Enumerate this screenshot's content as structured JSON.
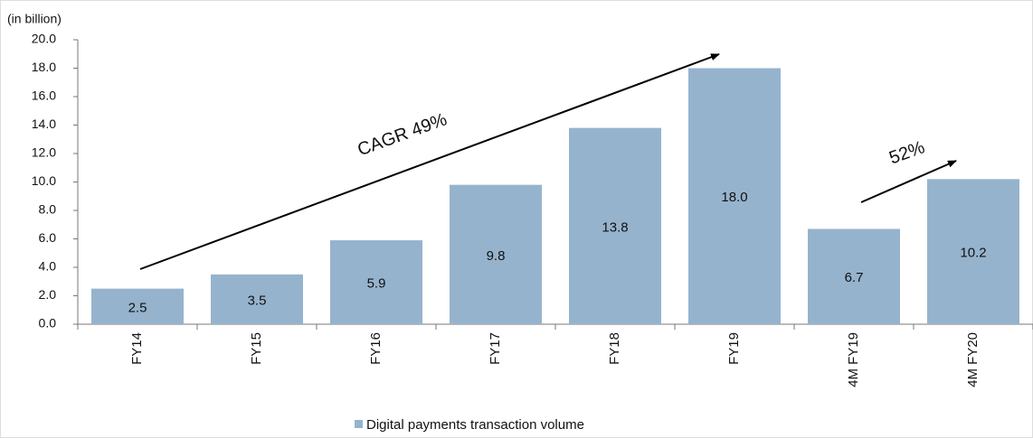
{
  "chart_data": {
    "type": "bar",
    "unit_label": "(in billion)",
    "categories": [
      "FY14",
      "FY15",
      "FY16",
      "FY17",
      "FY18",
      "FY19",
      "4M FY19",
      "4M FY20"
    ],
    "series": [
      {
        "name": "Digital payments transaction volume",
        "color": "#96b3cd",
        "values": [
          2.5,
          3.5,
          5.9,
          9.8,
          13.8,
          18.0,
          6.7,
          10.2
        ],
        "value_labels": [
          "2.5",
          "3.5",
          "5.9",
          "9.8",
          "13.8",
          "18.0",
          "6.7",
          "10.2"
        ]
      }
    ],
    "ylim": [
      0,
      20
    ],
    "yticks": [
      {
        "value": 0,
        "label": "0.0"
      },
      {
        "value": 2,
        "label": "2.0"
      },
      {
        "value": 4,
        "label": "4.0"
      },
      {
        "value": 6,
        "label": "6.0"
      },
      {
        "value": 8,
        "label": "8.0"
      },
      {
        "value": 10,
        "label": "10.0"
      },
      {
        "value": 12,
        "label": "12.0"
      },
      {
        "value": 14,
        "label": "14.0"
      },
      {
        "value": 16,
        "label": "16.0"
      },
      {
        "value": 18,
        "label": "18.0"
      },
      {
        "value": 20,
        "label": "20.0"
      }
    ],
    "annotations": [
      "CAGR 49%",
      "52%"
    ],
    "legend": "bottom"
  }
}
